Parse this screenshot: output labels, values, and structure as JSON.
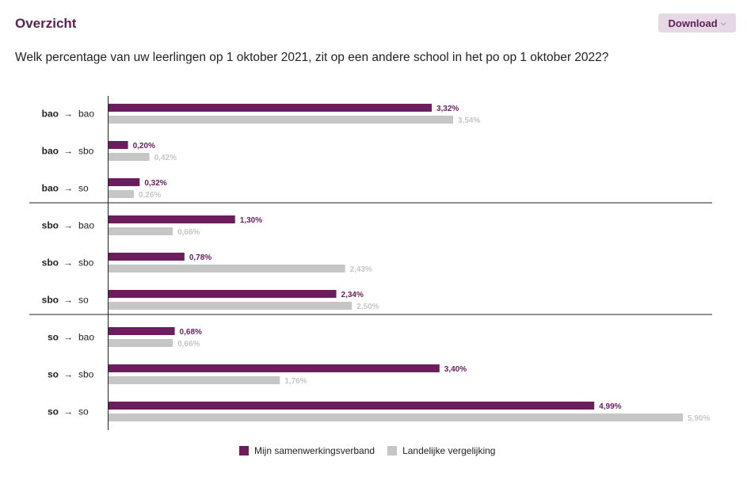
{
  "header": {
    "title": "Overzicht",
    "download_label": "Download",
    "download_icon": "chevron-down-icon"
  },
  "question": "Welk percentage van uw leerlingen op 1 oktober 2021, zit op een andere school in het po op 1 oktober 2022?",
  "colors": {
    "series1": "#6b1d5e",
    "series2": "#c6c6c6",
    "series2_label": "#c6c6c6"
  },
  "chart_data": {
    "type": "bar",
    "orientation": "horizontal",
    "categories": [
      {
        "from": "bao",
        "to": "bao"
      },
      {
        "from": "bao",
        "to": "sbo"
      },
      {
        "from": "bao",
        "to": "so"
      },
      {
        "from": "sbo",
        "to": "bao"
      },
      {
        "from": "sbo",
        "to": "sbo"
      },
      {
        "from": "sbo",
        "to": "so"
      },
      {
        "from": "so",
        "to": "bao"
      },
      {
        "from": "so",
        "to": "sbo"
      },
      {
        "from": "so",
        "to": "so"
      }
    ],
    "arrow": "→",
    "series": [
      {
        "name": "Mijn samenwerkingsverband",
        "values": [
          3.32,
          0.2,
          0.32,
          1.3,
          0.78,
          2.34,
          0.68,
          3.4,
          4.99
        ],
        "labels": [
          "3,32%",
          "0,20%",
          "0,32%",
          "1,30%",
          "0,78%",
          "2,34%",
          "0,68%",
          "3,40%",
          "4,99%"
        ]
      },
      {
        "name": "Landelijke vergelijking",
        "values": [
          3.54,
          0.42,
          0.26,
          0.66,
          2.43,
          2.5,
          0.66,
          1.76,
          5.9
        ],
        "labels": [
          "3,54%",
          "0,42%",
          "0,26%",
          "0,66%",
          "2,43%",
          "2,50%",
          "0,66%",
          "1,76%",
          "5,90%"
        ]
      }
    ],
    "group_separators_after": [
      2,
      5
    ],
    "xlim": [
      0,
      5.9
    ],
    "legend_position": "bottom-center"
  }
}
